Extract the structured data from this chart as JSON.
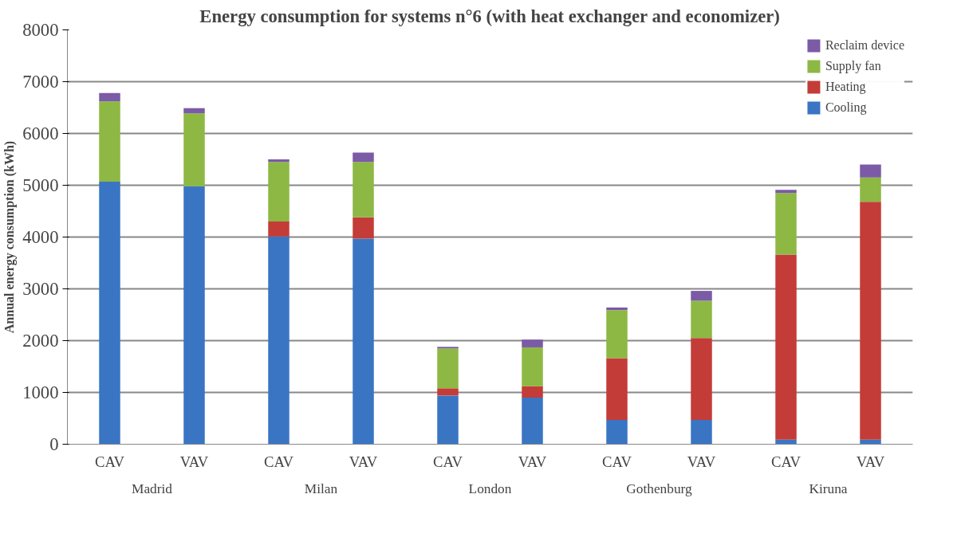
{
  "chart_data": {
    "type": "bar",
    "stacked": true,
    "title": "Energy consumption for systems n°6 (with heat exchanger and economizer)",
    "ylabel": "Annual energy consumption (kWh)",
    "categories": [
      "CAV",
      "VAV",
      "CAV",
      "VAV",
      "CAV",
      "VAV",
      "CAV",
      "VAV",
      "CAV",
      "VAV"
    ],
    "annotations": [
      "Madrid",
      "Milan",
      "London",
      "Gothenburg",
      "Kiruna"
    ],
    "series": [
      {
        "name": "Cooling",
        "color": "#3a75c4",
        "values": [
          5070,
          4980,
          4010,
          3970,
          940,
          900,
          470,
          470,
          90,
          90
        ]
      },
      {
        "name": "Heating",
        "color": "#c33c38",
        "values": [
          0,
          0,
          290,
          410,
          140,
          220,
          1190,
          1580,
          3570,
          4590
        ]
      },
      {
        "name": "Supply fan",
        "color": "#8db843",
        "values": [
          1550,
          1410,
          1150,
          1070,
          770,
          750,
          930,
          720,
          1190,
          470
        ]
      },
      {
        "name": "Reclaim device",
        "color": "#7b5aa6",
        "values": [
          160,
          100,
          50,
          180,
          30,
          150,
          50,
          190,
          60,
          250
        ]
      }
    ],
    "ylim": [
      0,
      8000
    ],
    "yticks": [
      0,
      1000,
      2000,
      3000,
      4000,
      5000,
      6000,
      7000,
      8000
    ],
    "grid": "y",
    "legend": "top right"
  }
}
